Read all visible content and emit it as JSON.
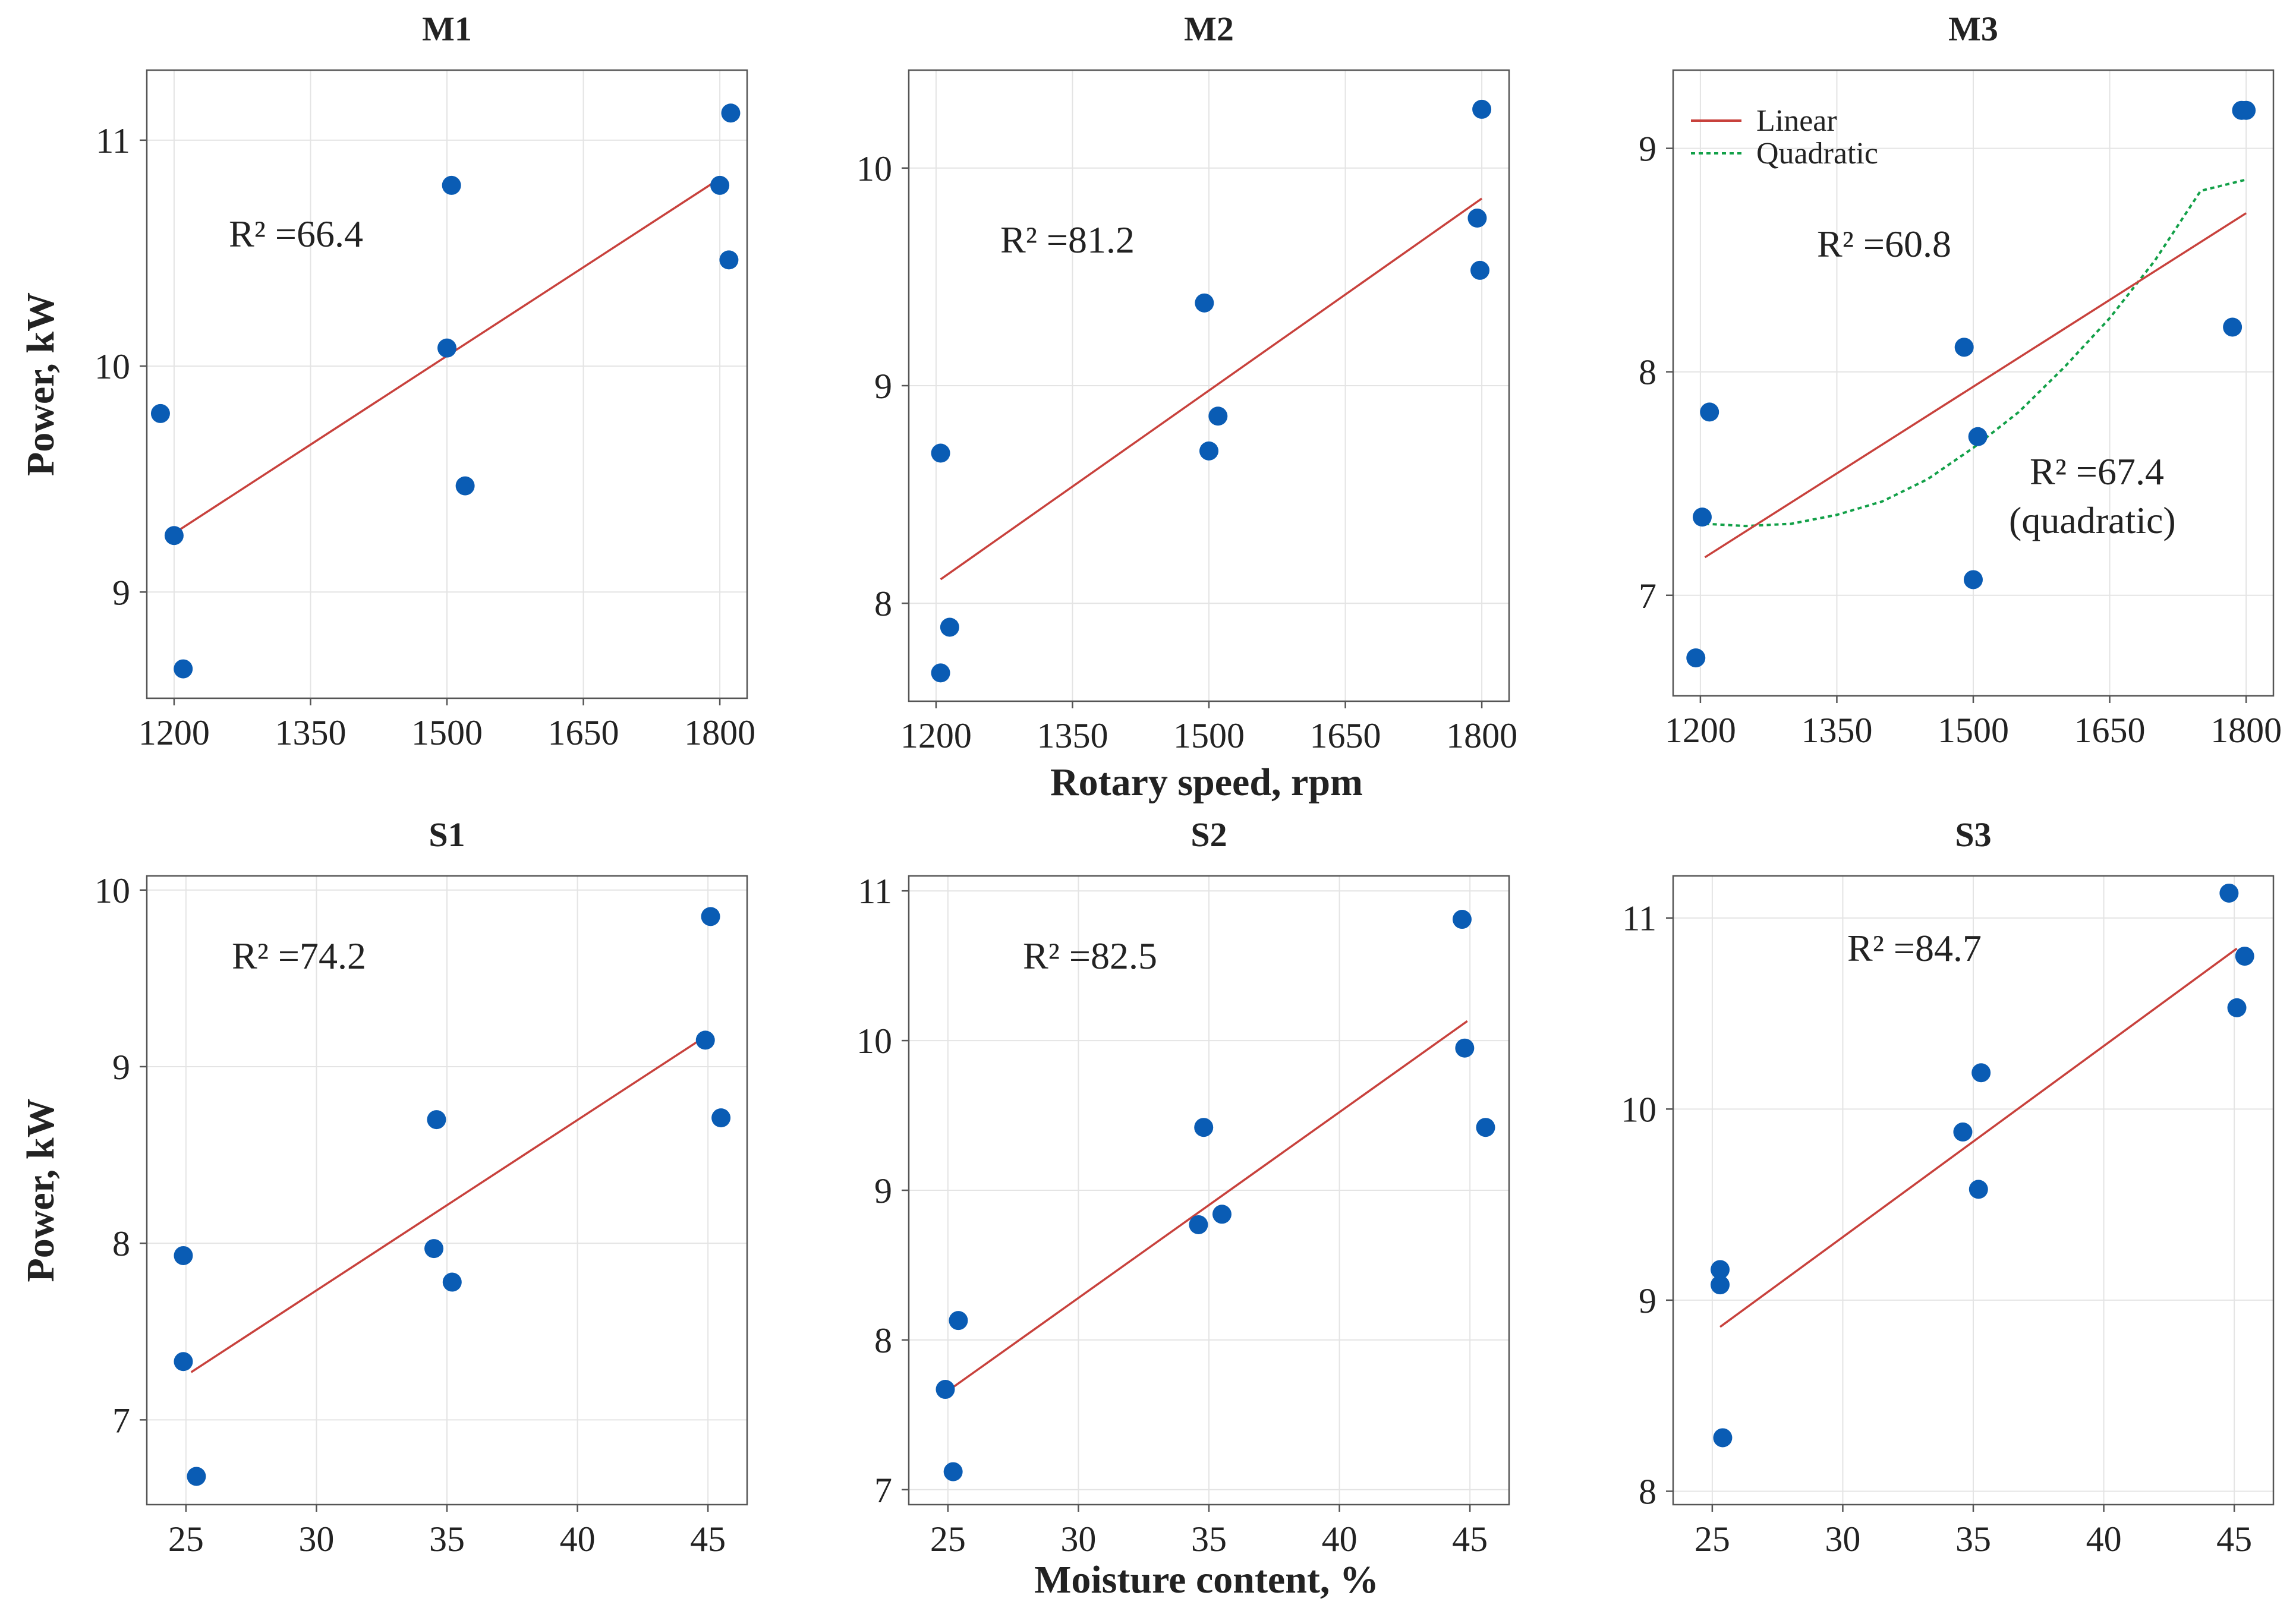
{
  "colors": {
    "point": "#0a5cb4",
    "linear": "#c8413c",
    "quadratic": "#12a048",
    "grid": "#e4e4e4",
    "frame": "#555555",
    "text": "#222222"
  },
  "chart_data": [
    {
      "id": "M1",
      "type": "scatter",
      "title": "M1",
      "xlabel": "",
      "ylabel": "Power, kW",
      "xlim": [
        1170,
        1830
      ],
      "ylim": [
        8.53,
        11.31
      ],
      "xticks": [
        1200,
        1350,
        1500,
        1650,
        1800
      ],
      "yticks": [
        9,
        10,
        11
      ],
      "x": [
        1185,
        1200,
        1210,
        1500,
        1505,
        1520,
        1800,
        1810,
        1812
      ],
      "y": [
        9.79,
        9.25,
        8.66,
        10.08,
        10.8,
        9.47,
        10.8,
        10.47,
        11.12
      ],
      "linear": {
        "x": [
          1200,
          1800
        ],
        "y": [
          9.26,
          10.83
        ]
      },
      "annotations": [
        "R² =66.4"
      ]
    },
    {
      "id": "M2",
      "type": "scatter",
      "title": "M2",
      "xlabel": "",
      "ylabel": "",
      "xlim": [
        1170,
        1830
      ],
      "ylim": [
        7.55,
        10.45
      ],
      "xticks": [
        1200,
        1350,
        1500,
        1650,
        1800
      ],
      "yticks": [
        8,
        9,
        10
      ],
      "x": [
        1205,
        1205,
        1215,
        1495,
        1500,
        1510,
        1795,
        1798,
        1800
      ],
      "y": [
        8.69,
        7.68,
        7.89,
        9.38,
        8.7,
        8.86,
        9.77,
        9.53,
        10.27
      ],
      "linear": {
        "x": [
          1205,
          1800
        ],
        "y": [
          8.11,
          9.86
        ]
      },
      "annotations": [
        "R² =81.2"
      ]
    },
    {
      "id": "M3",
      "type": "scatter",
      "title": "M3",
      "xlabel": "",
      "ylabel": "",
      "xlim": [
        1170,
        1830
      ],
      "ylim": [
        6.55,
        9.35
      ],
      "xticks": [
        1200,
        1350,
        1500,
        1650,
        1800
      ],
      "yticks": [
        7,
        8,
        9
      ],
      "x": [
        1195,
        1202,
        1210,
        1490,
        1500,
        1505,
        1785,
        1795,
        1800
      ],
      "y": [
        6.72,
        7.35,
        7.82,
        8.11,
        7.07,
        7.71,
        8.2,
        9.17,
        9.17
      ],
      "linear": {
        "x": [
          1205,
          1800
        ],
        "y": [
          7.17,
          8.71
        ]
      },
      "quadratic": {
        "x": [
          1205,
          1250,
          1300,
          1350,
          1400,
          1450,
          1500,
          1550,
          1600,
          1650,
          1700,
          1750,
          1800
        ],
        "y": [
          7.32,
          7.31,
          7.32,
          7.36,
          7.42,
          7.52,
          7.66,
          7.82,
          8.02,
          8.24,
          8.5,
          8.81,
          8.86
        ]
      },
      "legend": {
        "position": "top-left",
        "entries": [
          "Linear",
          "Quadratic"
        ]
      },
      "annotations": [
        "R² =60.8",
        "R² =67.4",
        "(quadratic)"
      ]
    },
    {
      "id": "S1",
      "type": "scatter",
      "title": "S1",
      "xlabel": "",
      "ylabel": "Power, kW",
      "xlim": [
        23.5,
        46.5
      ],
      "ylim": [
        6.52,
        10.08
      ],
      "xticks": [
        25,
        30,
        35,
        40,
        45
      ],
      "yticks": [
        7,
        8,
        9,
        10
      ],
      "x": [
        24.9,
        24.9,
        25.4,
        34.5,
        34.6,
        35.2,
        44.9,
        45.1,
        45.5
      ],
      "y": [
        7.93,
        7.33,
        6.68,
        7.97,
        8.7,
        7.78,
        9.15,
        9.85,
        8.71
      ],
      "linear": {
        "x": [
          25.2,
          45.1
        ],
        "y": [
          7.27,
          9.19
        ]
      },
      "annotations": [
        "R² =74.2"
      ]
    },
    {
      "id": "S2",
      "type": "scatter",
      "title": "S2",
      "xlabel": "Moisture content, %",
      "ylabel": "",
      "xlim": [
        23.5,
        46.5
      ],
      "ylim": [
        6.9,
        11.1
      ],
      "xticks": [
        25,
        30,
        35,
        40,
        45
      ],
      "yticks": [
        7,
        8,
        9,
        10,
        11
      ],
      "x": [
        24.9,
        25.2,
        25.4,
        34.6,
        34.8,
        35.5,
        44.7,
        44.8,
        45.6
      ],
      "y": [
        7.67,
        7.12,
        8.13,
        8.77,
        9.42,
        8.84,
        10.81,
        9.95,
        9.42
      ],
      "linear": {
        "x": [
          25.0,
          44.9
        ],
        "y": [
          7.66,
          10.13
        ]
      },
      "annotations": [
        "R² =82.5"
      ]
    },
    {
      "id": "S3",
      "type": "scatter",
      "title": "S3",
      "xlabel": "",
      "ylabel": "",
      "xlim": [
        23.5,
        46.5
      ],
      "ylim": [
        7.93,
        11.22
      ],
      "xticks": [
        25,
        30,
        35,
        40,
        45
      ],
      "yticks": [
        8,
        9,
        10,
        11
      ],
      "x": [
        25.3,
        25.3,
        25.4,
        34.6,
        35.2,
        35.3,
        44.8,
        45.1,
        45.4
      ],
      "y": [
        9.16,
        9.08,
        8.28,
        9.88,
        9.58,
        10.19,
        11.13,
        10.53,
        10.8
      ],
      "linear": {
        "x": [
          25.3,
          45.1
        ],
        "y": [
          8.86,
          10.84
        ]
      },
      "annotations": [
        "R² =84.7"
      ]
    }
  ],
  "shared_labels": {
    "top_xlabel": "Rotary speed, rpm",
    "bottom_xlabel": "Moisture content, %"
  }
}
